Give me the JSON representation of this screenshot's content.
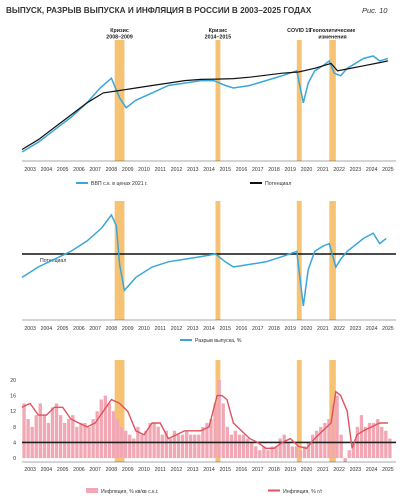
{
  "header": {
    "title": "ВЫПУСК, РАЗРЫВ ВЫПУСКА И ИНФЛЯЦИЯ В РОССИИ В 2003–2025 ГОДАХ",
    "figure_label": "Рис. 10"
  },
  "colors": {
    "gdp": "#3aa7d9",
    "potential": "#111111",
    "gap": "#3aa7d9",
    "inflation_saar": "#f2a8b4",
    "inflation_yoy": "#e0525e",
    "crisis_band": "#f5b85c"
  },
  "years": [
    "2003",
    "2004",
    "2005",
    "2006",
    "2007",
    "2008",
    "2009",
    "2010",
    "2011",
    "2012",
    "2013",
    "2014",
    "2015",
    "2016",
    "2017",
    "2018",
    "2019",
    "2020",
    "2021",
    "2022",
    "2023",
    "2024",
    "2025"
  ],
  "crisis_periods": [
    {
      "label_lines": [
        "Кризис",
        "2008–2009"
      ],
      "start": 2008.7,
      "end": 2009.3
    },
    {
      "label_lines": [
        "Кризис",
        "2014–2015"
      ],
      "start": 2014.9,
      "end": 2015.2
    },
    {
      "label_lines": [
        "COVID 19"
      ],
      "start": 2019.9,
      "end": 2020.2
    },
    {
      "label_lines": [
        "Геополитические",
        "изменения"
      ],
      "start": 2021.9,
      "end": 2022.3
    }
  ],
  "chart_data": [
    {
      "type": "line",
      "id": "output",
      "title": "",
      "xlabel": "",
      "ylabel": "",
      "xlim": [
        2003,
        2026
      ],
      "grid": false,
      "legend": "bottom",
      "series": [
        {
          "name": "ВВП с.к. в ценах 2021 г.",
          "color": "#3aa7d9",
          "x": [
            2003.0,
            2004.0,
            2005.0,
            2006.0,
            2007.0,
            2007.8,
            2008.5,
            2009.0,
            2009.4,
            2010.0,
            2011.0,
            2012.0,
            2013.0,
            2014.0,
            2014.8,
            2015.5,
            2016.0,
            2017.0,
            2018.0,
            2019.0,
            2019.9,
            2020.3,
            2020.6,
            2021.0,
            2021.5,
            2021.9,
            2022.2,
            2022.6,
            2023.0,
            2024.0,
            2024.6,
            2025.0,
            2025.5
          ],
          "y": [
            48,
            52,
            57,
            62,
            68,
            74,
            78,
            70,
            66,
            69,
            72,
            75,
            76,
            77,
            77,
            75,
            74,
            75,
            77,
            79,
            81,
            68,
            76,
            81,
            83,
            85,
            80,
            79,
            82,
            86,
            87,
            85,
            86
          ]
        },
        {
          "name": "Потенциал",
          "color": "#111111",
          "x": [
            2003.0,
            2004.0,
            2005.0,
            2006.0,
            2007.0,
            2008.0,
            2009.0,
            2010.0,
            2011.0,
            2012.0,
            2013.0,
            2014.0,
            2015.0,
            2016.0,
            2017.0,
            2018.0,
            2019.0,
            2020.0,
            2021.0,
            2022.0,
            2022.4,
            2023.0,
            2024.0,
            2025.0,
            2025.5
          ],
          "y": [
            49,
            53,
            58,
            63,
            68,
            72,
            73,
            74,
            75,
            76,
            77,
            77.5,
            77.6,
            77.8,
            78.4,
            79.2,
            80,
            80.5,
            82,
            84,
            81,
            81.7,
            83,
            84.3,
            85
          ]
        }
      ]
    },
    {
      "type": "line",
      "id": "output_gap",
      "title": "",
      "xlabel": "",
      "ylabel": "",
      "xlim": [
        2003,
        2026
      ],
      "grid": false,
      "legend": "bottom",
      "annotations": [
        "Потенциал"
      ],
      "series": [
        {
          "name": "Разрыв выпуска, %",
          "color": "#3aa7d9",
          "x": [
            2003.0,
            2004.0,
            2005.0,
            2006.0,
            2007.0,
            2007.9,
            2008.5,
            2008.8,
            2009.0,
            2009.3,
            2010.0,
            2011.0,
            2012.0,
            2013.0,
            2014.0,
            2014.9,
            2015.5,
            2016.0,
            2017.0,
            2018.0,
            2019.0,
            2019.9,
            2020.3,
            2020.6,
            2021.0,
            2021.5,
            2021.9,
            2022.3,
            2022.6,
            2023.0,
            2024.0,
            2024.6,
            2025.0,
            2025.4
          ],
          "y": [
            -4.5,
            -2.5,
            -1.0,
            0.5,
            2.5,
            5.0,
            7.5,
            5.5,
            -2.0,
            -7.0,
            -4.5,
            -2.5,
            -1.5,
            -1.0,
            -0.5,
            0.0,
            -1.5,
            -2.5,
            -2.0,
            -1.5,
            -0.5,
            0.5,
            -10.0,
            -3.0,
            0.5,
            1.5,
            2.0,
            -2.5,
            -1.0,
            0.5,
            3.0,
            4.0,
            2.0,
            3.0
          ]
        }
      ]
    },
    {
      "type": "bar",
      "id": "inflation",
      "title": "",
      "xlabel": "",
      "ylabel": "",
      "xlim": [
        2003,
        2026
      ],
      "ylim": [
        -1,
        20
      ],
      "yticks": [
        0,
        4,
        8,
        12,
        16,
        20
      ],
      "reference_line": 4,
      "grid": false,
      "legend": "bottom",
      "series": [
        {
          "name": "Инфляция, % кв/кв с.к.г.",
          "type": "bar",
          "color": "#f2a8b4",
          "x": [
            2003.0,
            2003.25,
            2003.5,
            2003.75,
            2004.0,
            2004.25,
            2004.5,
            2004.75,
            2005.0,
            2005.25,
            2005.5,
            2005.75,
            2006.0,
            2006.25,
            2006.5,
            2006.75,
            2007.0,
            2007.25,
            2007.5,
            2007.75,
            2008.0,
            2008.25,
            2008.5,
            2008.75,
            2009.0,
            2009.25,
            2009.5,
            2009.75,
            2010.0,
            2010.25,
            2010.5,
            2010.75,
            2011.0,
            2011.25,
            2011.5,
            2011.75,
            2012.0,
            2012.25,
            2012.5,
            2012.75,
            2013.0,
            2013.25,
            2013.5,
            2013.75,
            2014.0,
            2014.25,
            2014.5,
            2014.75,
            2015.0,
            2015.25,
            2015.5,
            2015.75,
            2016.0,
            2016.25,
            2016.5,
            2016.75,
            2017.0,
            2017.25,
            2017.5,
            2017.75,
            2018.0,
            2018.25,
            2018.5,
            2018.75,
            2019.0,
            2019.25,
            2019.5,
            2019.75,
            2020.0,
            2020.25,
            2020.5,
            2020.75,
            2021.0,
            2021.25,
            2021.5,
            2021.75,
            2022.0,
            2022.25,
            2022.5,
            2022.75,
            2023.0,
            2023.25,
            2023.5,
            2023.75,
            2024.0,
            2024.25,
            2024.5,
            2024.75,
            2025.0,
            2025.25,
            2025.5
          ],
          "y": [
            14,
            10,
            8,
            11,
            14,
            11,
            9,
            13,
            14,
            11,
            9,
            10,
            11,
            8,
            9,
            9,
            8,
            10,
            12,
            15,
            16,
            14,
            12,
            10,
            8,
            7,
            6,
            5,
            8,
            6,
            7,
            9,
            9,
            8,
            6,
            7,
            5,
            7,
            6,
            6,
            7,
            6,
            6,
            6,
            8,
            9,
            10,
            14,
            20,
            14,
            8,
            6,
            7,
            6,
            6,
            5,
            4,
            3,
            2,
            3,
            2,
            3,
            3,
            5,
            6,
            4,
            3,
            3,
            2,
            3,
            4,
            6,
            7,
            8,
            9,
            10,
            14,
            16,
            6,
            -1,
            2,
            4,
            8,
            11,
            8,
            9,
            9,
            10,
            8,
            7,
            5
          ]
        },
        {
          "name": "Инфляция, % г/г",
          "type": "line",
          "color": "#e0525e",
          "x": [
            2003.0,
            2003.5,
            2004.0,
            2004.5,
            2005.0,
            2005.5,
            2006.0,
            2006.5,
            2007.0,
            2007.5,
            2008.0,
            2008.5,
            2009.0,
            2009.5,
            2010.0,
            2010.5,
            2011.0,
            2011.5,
            2012.0,
            2012.5,
            2013.0,
            2013.5,
            2014.0,
            2014.5,
            2015.0,
            2015.3,
            2015.6,
            2016.0,
            2016.5,
            2017.0,
            2017.5,
            2018.0,
            2018.5,
            2019.0,
            2019.5,
            2020.0,
            2020.5,
            2021.0,
            2021.5,
            2022.0,
            2022.3,
            2022.6,
            2023.0,
            2023.3,
            2023.6,
            2024.0,
            2024.5,
            2025.0,
            2025.5
          ],
          "y": [
            13,
            14,
            11,
            11,
            13,
            13,
            10,
            9,
            8,
            9,
            12,
            15,
            14,
            12,
            7,
            6,
            9,
            9,
            5,
            6,
            7,
            7,
            7,
            8,
            16,
            16,
            15,
            9,
            7,
            5,
            4,
            2.5,
            2.5,
            4,
            5,
            3,
            2.5,
            5,
            7,
            9,
            17,
            16,
            12,
            2.5,
            6,
            7,
            8,
            9,
            9
          ]
        }
      ]
    }
  ]
}
